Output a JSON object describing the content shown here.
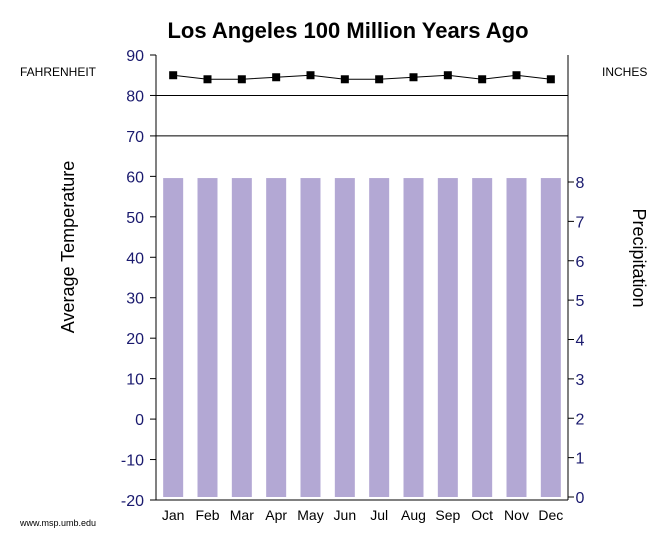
{
  "chart_data": {
    "type": "bar",
    "title": "Los Angeles 100 Million Years Ago",
    "left_unit": "FAHRENHEIT",
    "right_unit": "INCHES",
    "ylabel_left": "Average Temperature",
    "ylabel_right": "Precipitation",
    "categories": [
      "Jan",
      "Feb",
      "Mar",
      "Apr",
      "May",
      "Jun",
      "Jul",
      "Aug",
      "Sep",
      "Oct",
      "Nov",
      "Dec"
    ],
    "temp_ticks": [
      "90",
      "80",
      "70",
      "60",
      "50",
      "40",
      "30",
      "20",
      "10",
      "0",
      "-10",
      "-20"
    ],
    "precip_ticks": [
      "8",
      "7",
      "6",
      "5",
      "4",
      "3",
      "2",
      "1",
      "0"
    ],
    "ylim_temp": [
      -20,
      90
    ],
    "ylim_precip": [
      0,
      8
    ],
    "gridlines_temp": [
      80,
      70
    ],
    "series": [
      {
        "type": "bar",
        "axis": "right",
        "color": "#b3a8d4",
        "values": [
          8.1,
          8.1,
          8.1,
          8.1,
          8.1,
          8.1,
          8.1,
          8.1,
          8.1,
          8.1,
          8.1,
          8.1
        ]
      },
      {
        "type": "line",
        "axis": "left",
        "color": "#000000",
        "marker": "square",
        "values": [
          85,
          84,
          84,
          84.5,
          85,
          84,
          84,
          84.5,
          85,
          84,
          85,
          84
        ]
      }
    ]
  },
  "credit": "www.msp.umb.edu"
}
